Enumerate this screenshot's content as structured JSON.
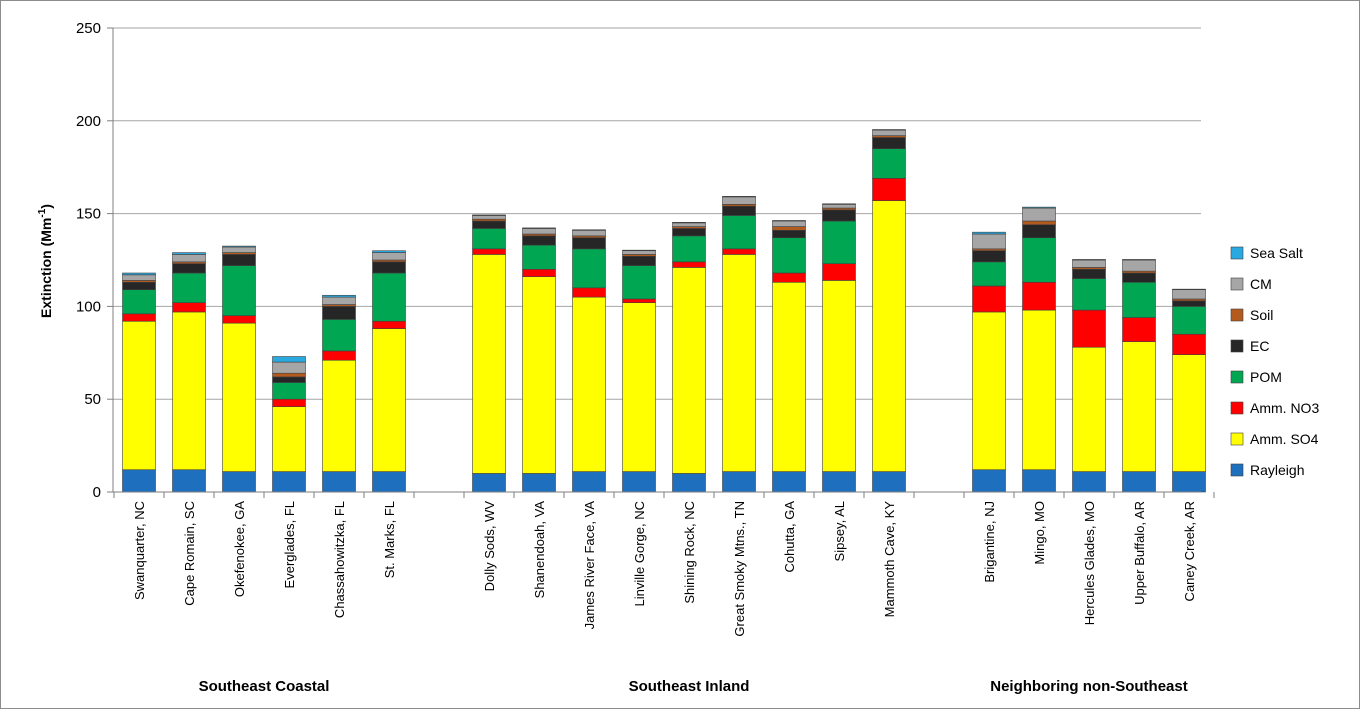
{
  "chart_data": {
    "type": "bar",
    "stacked": true,
    "title": "",
    "ylabel": "Extinction (Mm",
    "ylabel_superscript": "-1",
    "ylabel_close": ")",
    "ylim": [
      0,
      250
    ],
    "yticks": [
      0,
      50,
      100,
      150,
      200,
      250
    ],
    "grid": true,
    "legend_position": "right",
    "groups": [
      {
        "name": "Southeast Coastal",
        "start": 0,
        "end": 5
      },
      {
        "name": "Southeast Inland",
        "start": 6,
        "end": 14
      },
      {
        "name": "Neighboring non-Southeast",
        "start": 15,
        "end": 19
      }
    ],
    "categories": [
      "Swanquarter, NC",
      "Cape Romain, SC",
      "Okefenokee, GA",
      "Everglades, FL",
      "Chassahowitzka, FL",
      "St. Marks, FL",
      "Dolly Sods, WV",
      "Shanendoah, VA",
      "James River Face, VA",
      "Linville Gorge, NC",
      "Shining Rock, NC",
      "Great Smoky Mtns., TN",
      "Cohutta, GA",
      "Sipsey, AL",
      "Mammoth Cave, KY",
      "Brigantine, NJ",
      "Mingo, MO",
      "Hercules Glades, MO",
      "Upper Buffalo, AR",
      "Caney Creek, AR"
    ],
    "series": [
      {
        "name": "Rayleigh",
        "color": "#1f6fbf",
        "values": [
          12,
          12,
          11,
          11,
          11,
          11,
          10,
          10,
          11,
          11,
          10,
          11,
          11,
          11,
          11,
          12,
          12,
          11,
          11,
          11
        ]
      },
      {
        "name": "Amm. SO4",
        "color": "#ffff00",
        "values": [
          80,
          85,
          80,
          35,
          60,
          77,
          118,
          106,
          94,
          91,
          111,
          117,
          102,
          103,
          146,
          85,
          86,
          67,
          70,
          63
        ]
      },
      {
        "name": "Amm. NO3",
        "color": "#ff0000",
        "values": [
          4,
          5,
          4,
          4,
          5,
          4,
          3,
          4,
          5,
          2,
          3,
          3,
          5,
          9,
          12,
          14,
          15,
          20,
          13,
          11
        ]
      },
      {
        "name": "POM",
        "color": "#00a651",
        "values": [
          13,
          16,
          27,
          9,
          17,
          26,
          11,
          13,
          21,
          18,
          14,
          18,
          19,
          23,
          16,
          13,
          24,
          17,
          19,
          15
        ]
      },
      {
        "name": "EC",
        "color": "#262626",
        "values": [
          4,
          5,
          6,
          3,
          7,
          6,
          4,
          5,
          6,
          5,
          4,
          5,
          4,
          6,
          6,
          6,
          7,
          5,
          5,
          3
        ]
      },
      {
        "name": "Soil",
        "color": "#b35a1f",
        "values": [
          1,
          1,
          1,
          2,
          1,
          1,
          1,
          1,
          1,
          1,
          1,
          1,
          2,
          1,
          1,
          1,
          2,
          1,
          1,
          1
        ]
      },
      {
        "name": "CM",
        "color": "#a6a6a6",
        "values": [
          3,
          4,
          3,
          6,
          4,
          4,
          2,
          3,
          3,
          2,
          2,
          4,
          3,
          2,
          3,
          8,
          7,
          4,
          6,
          5
        ]
      },
      {
        "name": "Sea Salt",
        "color": "#29a9e0",
        "values": [
          1,
          1,
          0.5,
          3,
          1,
          1,
          0.3,
          0.3,
          0.3,
          0.3,
          0.3,
          0.3,
          0.3,
          0.3,
          0.3,
          1,
          0.5,
          0.3,
          0.3,
          0.3
        ]
      }
    ]
  }
}
